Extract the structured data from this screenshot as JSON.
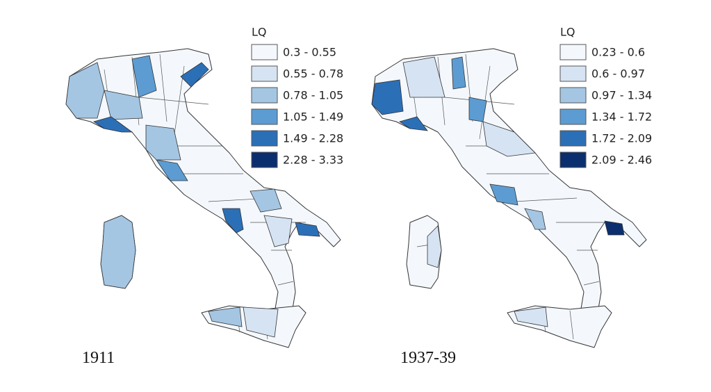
{
  "maps": [
    {
      "year": "1911",
      "legend_title": "LQ",
      "classes": [
        {
          "label": "0.3 - 0.55",
          "color": "#f4f8fd"
        },
        {
          "label": "0.55 - 0.78",
          "color": "#d6e3f2"
        },
        {
          "label": "0.78 - 1.05",
          "color": "#a4c6e3"
        },
        {
          "label": "1.05 - 1.49",
          "color": "#5c9cd2"
        },
        {
          "label": "1.49 - 2.28",
          "color": "#2b6fb7"
        },
        {
          "label": "2.28 - 3.33",
          "color": "#0b2f6e"
        }
      ]
    },
    {
      "year": "1937-39",
      "legend_title": "LQ",
      "classes": [
        {
          "label": "0.23 - 0.6",
          "color": "#f4f8fd"
        },
        {
          "label": "0.6 - 0.97",
          "color": "#d6e3f2"
        },
        {
          "label": "0.97 - 1.34",
          "color": "#a4c6e3"
        },
        {
          "label": "1.34 - 1.72",
          "color": "#5c9cd2"
        },
        {
          "label": "1.72 - 2.09",
          "color": "#2b6fb7"
        },
        {
          "label": "2.09 - 2.46",
          "color": "#0b2f6e"
        }
      ]
    }
  ]
}
